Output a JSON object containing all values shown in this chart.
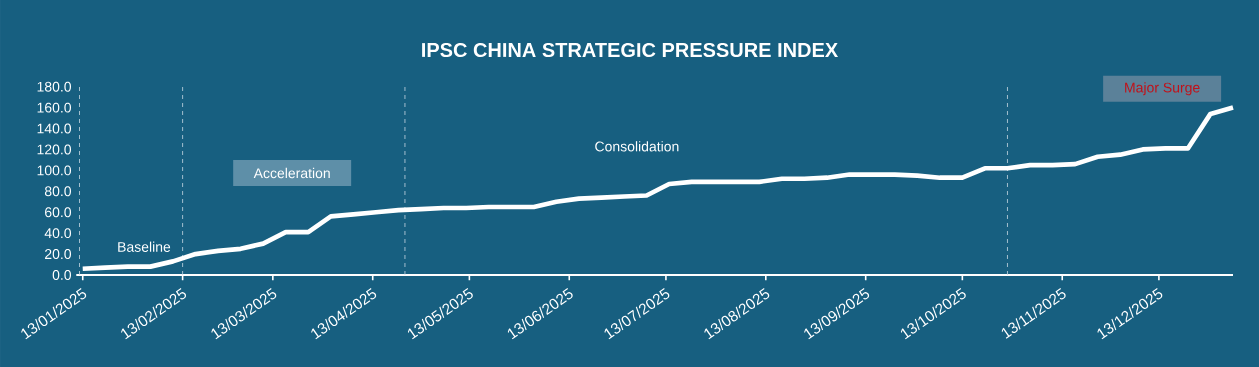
{
  "chart_data": {
    "type": "line",
    "title": "IPSC CHINA STRATEGIC PRESSURE INDEX",
    "x": [
      "2025-01-13",
      "2025-01-20",
      "2025-01-27",
      "2025-02-03",
      "2025-02-10",
      "2025-02-17",
      "2025-02-24",
      "2025-03-03",
      "2025-03-10",
      "2025-03-17",
      "2025-03-24",
      "2025-03-31",
      "2025-04-07",
      "2025-04-14",
      "2025-04-21",
      "2025-04-28",
      "2025-05-05",
      "2025-05-12",
      "2025-05-19",
      "2025-05-26",
      "2025-06-02",
      "2025-06-09",
      "2025-06-16",
      "2025-06-23",
      "2025-06-30",
      "2025-07-07",
      "2025-07-14",
      "2025-07-21",
      "2025-07-28",
      "2025-08-04",
      "2025-08-11",
      "2025-08-18",
      "2025-08-25",
      "2025-09-01",
      "2025-09-08",
      "2025-09-15",
      "2025-09-22",
      "2025-09-29",
      "2025-10-06",
      "2025-10-13",
      "2025-10-20",
      "2025-10-27",
      "2025-11-03",
      "2025-11-10",
      "2025-11-17",
      "2025-11-24",
      "2025-12-01",
      "2025-12-08",
      "2025-12-15",
      "2025-12-22",
      "2025-12-29",
      "2026-01-05"
    ],
    "series": [
      {
        "color": "#ffffff",
        "values": [
          6,
          7,
          8,
          8,
          13,
          20,
          23,
          25,
          30,
          41,
          41,
          56,
          58,
          60,
          62,
          63,
          64,
          64,
          65,
          65,
          65,
          70,
          73,
          74,
          75,
          76,
          87,
          89,
          89,
          89,
          89,
          92,
          92,
          93,
          96,
          96,
          96,
          95,
          93,
          93,
          102,
          102,
          105,
          105,
          106,
          113,
          115,
          120,
          121,
          121,
          154,
          160
        ]
      }
    ],
    "line_style": "solid",
    "marker": "none",
    "xlim": [
      "2025-01-11",
      "2026-01-05"
    ],
    "xticks": [
      {
        "value": "2025-01-13",
        "label": "13/01/2025"
      },
      {
        "value": "2025-02-13",
        "label": "13/02/2025"
      },
      {
        "value": "2025-03-13",
        "label": "13/03/2025"
      },
      {
        "value": "2025-04-13",
        "label": "13/04/2025"
      },
      {
        "value": "2025-05-13",
        "label": "13/05/2025"
      },
      {
        "value": "2025-06-13",
        "label": "13/06/2025"
      },
      {
        "value": "2025-07-13",
        "label": "13/07/2025"
      },
      {
        "value": "2025-08-13",
        "label": "13/08/2025"
      },
      {
        "value": "2025-09-13",
        "label": "13/09/2025"
      },
      {
        "value": "2025-10-13",
        "label": "13/10/2025"
      },
      {
        "value": "2025-11-13",
        "label": "13/11/2025"
      },
      {
        "value": "2025-12-13",
        "label": "13/12/2025"
      }
    ],
    "ylim": [
      0,
      180
    ],
    "yticks": [
      {
        "value": 0,
        "label": "0.0"
      },
      {
        "value": 20,
        "label": "20.0"
      },
      {
        "value": 40,
        "label": "40.0"
      },
      {
        "value": 60,
        "label": "60.0"
      },
      {
        "value": 80,
        "label": "80.0"
      },
      {
        "value": 100,
        "label": "100.0"
      },
      {
        "value": 120,
        "label": "120.0"
      },
      {
        "value": 140,
        "label": "140.0"
      },
      {
        "value": 160,
        "label": "160.0"
      },
      {
        "value": 180,
        "label": "180.0"
      }
    ],
    "ref_lines": [
      {
        "axis": "x",
        "value": "2025-01-12",
        "color": "#c8d8e2",
        "line_style": "dashed"
      },
      {
        "axis": "x",
        "value": "2025-02-13",
        "color": "#c8d8e2",
        "line_style": "dashed"
      },
      {
        "axis": "x",
        "value": "2025-04-23",
        "color": "#c8d8e2",
        "line_style": "dashed"
      },
      {
        "axis": "x",
        "value": "2025-10-27",
        "color": "#c8d8e2",
        "line_style": "dashed"
      }
    ],
    "annotations": [
      "Baseline",
      "Acceleration",
      "Consolidation",
      "Major Surge"
    ]
  }
}
